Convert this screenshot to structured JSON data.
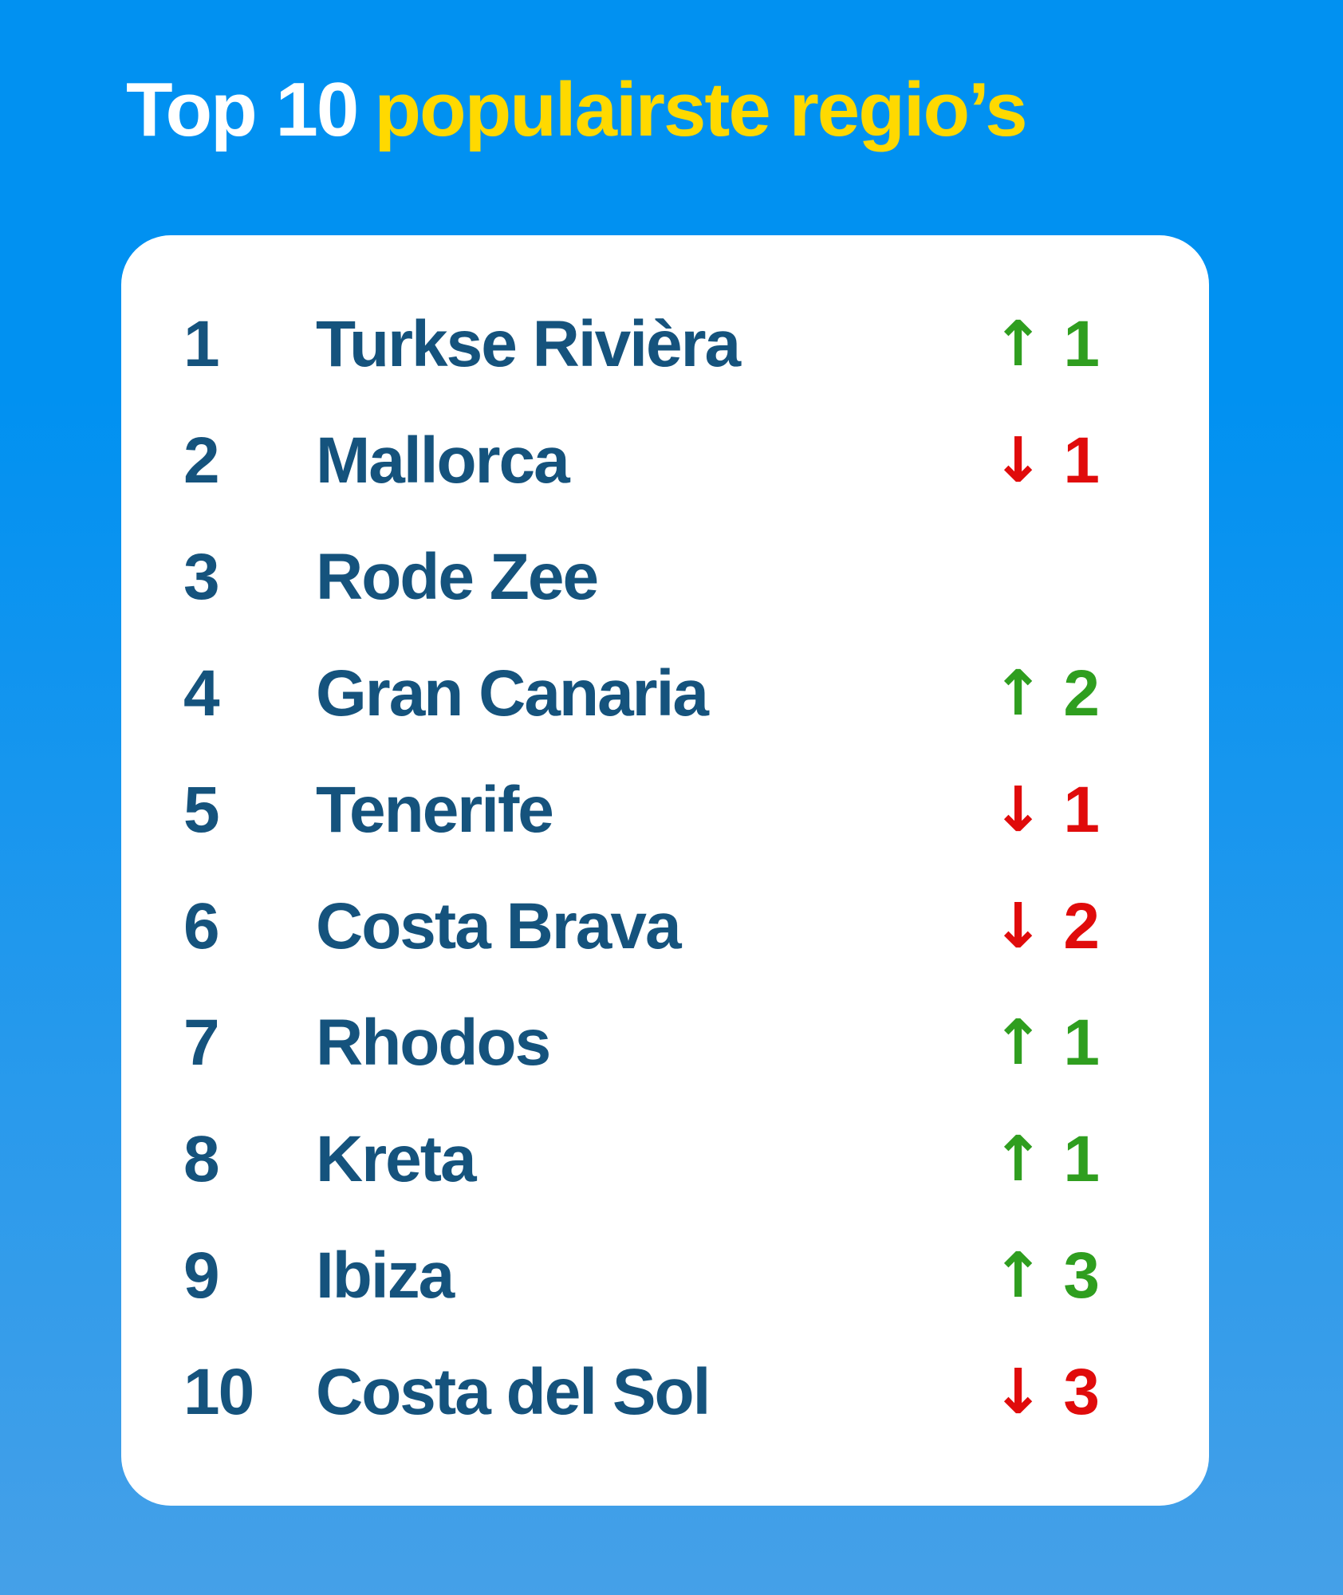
{
  "title": {
    "prefix": "Top 10",
    "highlight": "populairste regio’s"
  },
  "icons": {
    "up_arrow": "↑",
    "down_arrow": "↓"
  },
  "colors": {
    "bg_top": "#0191F1",
    "bg_bottom": "#45A0E8",
    "card_bg": "#FFFFFF",
    "title_primary": "#FFFFFF",
    "title_accent": "#FFD900",
    "text_navy": "#15537D",
    "up_green": "#2F9E1F",
    "down_red": "#E00B0B"
  },
  "ranking": [
    {
      "rank": "1",
      "name": "Turkse Rivièra",
      "direction": "up",
      "change": "1"
    },
    {
      "rank": "2",
      "name": "Mallorca",
      "direction": "down",
      "change": "1"
    },
    {
      "rank": "3",
      "name": "Rode Zee",
      "direction": "none",
      "change": ""
    },
    {
      "rank": "4",
      "name": "Gran Canaria",
      "direction": "up",
      "change": "2"
    },
    {
      "rank": "5",
      "name": "Tenerife",
      "direction": "down",
      "change": "1"
    },
    {
      "rank": "6",
      "name": "Costa Brava",
      "direction": "down",
      "change": "2"
    },
    {
      "rank": "7",
      "name": "Rhodos",
      "direction": "up",
      "change": "1"
    },
    {
      "rank": "8",
      "name": "Kreta",
      "direction": "up",
      "change": "1"
    },
    {
      "rank": "9",
      "name": "Ibiza",
      "direction": "up",
      "change": "3"
    },
    {
      "rank": "10",
      "name": "Costa del Sol",
      "direction": "down",
      "change": "3"
    }
  ],
  "chart_data": {
    "type": "table",
    "title": "Top 10 populairste regio's",
    "columns": [
      "rank",
      "region",
      "position_change"
    ],
    "rows": [
      [
        1,
        "Turkse Rivièra",
        1
      ],
      [
        2,
        "Mallorca",
        -1
      ],
      [
        3,
        "Rode Zee",
        0
      ],
      [
        4,
        "Gran Canaria",
        2
      ],
      [
        5,
        "Tenerife",
        -1
      ],
      [
        6,
        "Costa Brava",
        -2
      ],
      [
        7,
        "Rhodos",
        1
      ],
      [
        8,
        "Kreta",
        1
      ],
      [
        9,
        "Ibiza",
        3
      ],
      [
        10,
        "Costa del Sol",
        -3
      ]
    ]
  }
}
